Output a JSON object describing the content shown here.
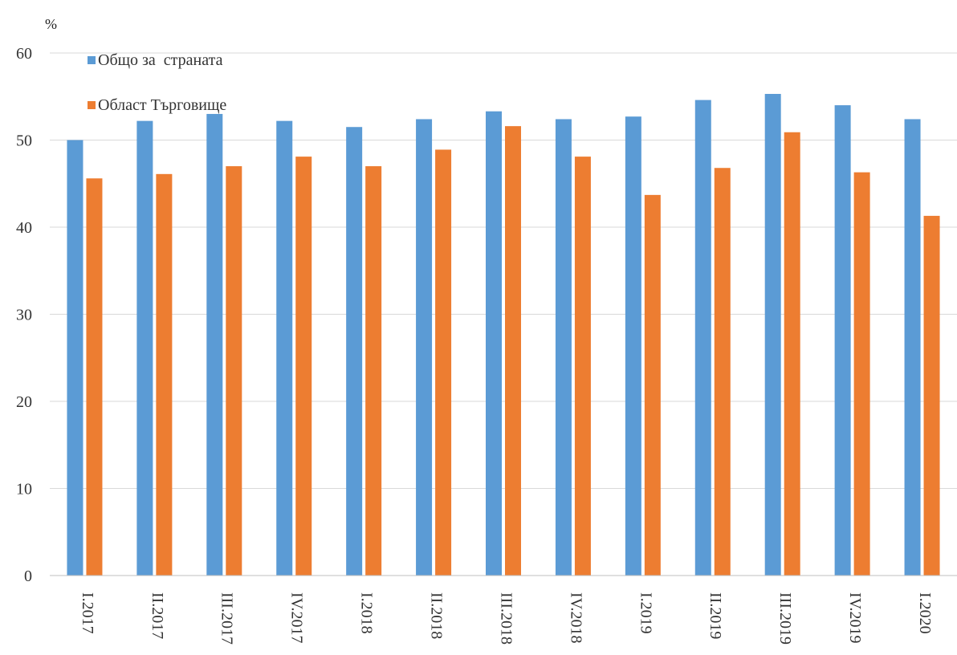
{
  "chart_data": {
    "type": "bar",
    "ylabel": "%",
    "ylim": [
      0,
      60
    ],
    "yticks": [
      0,
      10,
      20,
      30,
      40,
      50,
      60
    ],
    "grid": true,
    "legend_position": "top-left",
    "categories": [
      "I.2017",
      "II.2017",
      "III.2017",
      "IV.2017",
      "I.2018",
      "II.2018",
      "III.2018",
      "IV.2018",
      "I.2019",
      "II.2019",
      "III.2019",
      "IV.2019",
      "I.2020"
    ],
    "series": [
      {
        "name": "Общо за  страната",
        "color": "#5B9BD5",
        "values": [
          50.0,
          52.2,
          53.0,
          52.2,
          51.5,
          52.4,
          53.3,
          52.4,
          52.7,
          54.6,
          55.3,
          54.0,
          52.4
        ]
      },
      {
        "name": "Област Търговище",
        "color": "#ED7D31",
        "values": [
          45.6,
          46.1,
          47.0,
          48.1,
          47.0,
          48.9,
          51.6,
          48.1,
          43.7,
          46.8,
          50.9,
          46.3,
          41.3
        ]
      }
    ]
  }
}
